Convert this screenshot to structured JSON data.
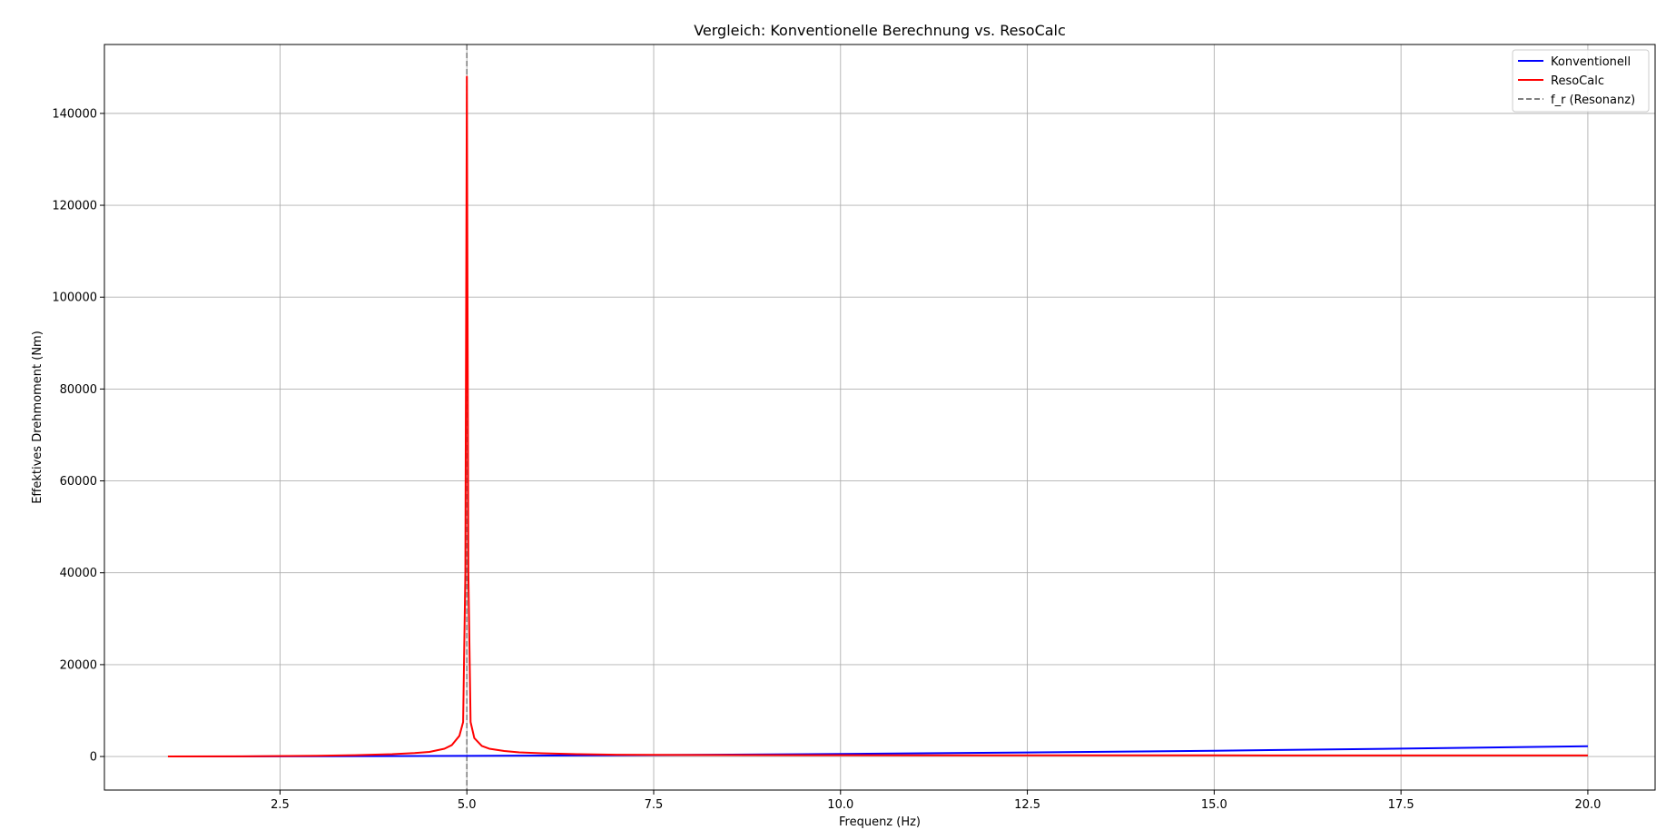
{
  "chart_data": {
    "type": "line",
    "title": "Vergleich: Konventionelle Berechnung vs. ResoCalc",
    "xlabel": "Frequenz (Hz)",
    "ylabel": "Effektives Drehmoment (Nm)",
    "xlim": [
      0.15,
      20.9
    ],
    "ylim": [
      -7300,
      155000
    ],
    "x_ticks": [
      2.5,
      5.0,
      7.5,
      10.0,
      12.5,
      15.0,
      17.5,
      20.0
    ],
    "x_tick_labels": [
      "2.5",
      "5.0",
      "7.5",
      "10.0",
      "12.5",
      "15.0",
      "17.5",
      "20.0"
    ],
    "y_ticks": [
      0,
      20000,
      40000,
      60000,
      80000,
      100000,
      120000,
      140000
    ],
    "y_tick_labels": [
      "0",
      "20000",
      "40000",
      "60000",
      "80000",
      "100000",
      "120000",
      "140000"
    ],
    "grid": true,
    "legend_position": "top-right",
    "series": [
      {
        "name": "Konventionell",
        "color": "#0000ff",
        "x": [
          1.0,
          2.5,
          5.0,
          7.5,
          10.0,
          12.5,
          15.0,
          17.5,
          20.0
        ],
        "y": [
          5,
          35,
          140,
          320,
          560,
          880,
          1260,
          1720,
          2240
        ]
      },
      {
        "name": "ResoCalc",
        "color": "#ff0000",
        "x": [
          1.0,
          2.0,
          3.0,
          3.5,
          4.0,
          4.3,
          4.5,
          4.7,
          4.8,
          4.9,
          4.95,
          4.98,
          5.0,
          5.02,
          5.05,
          5.1,
          5.2,
          5.3,
          5.5,
          5.7,
          6.0,
          6.5,
          7.0,
          8.0,
          10.0,
          12.5,
          15.0,
          17.5,
          20.0
        ],
        "y": [
          10,
          40,
          160,
          280,
          500,
          750,
          1000,
          1700,
          2500,
          4500,
          7500,
          40000,
          148000,
          40000,
          7500,
          4000,
          2300,
          1700,
          1200,
          900,
          700,
          500,
          380,
          330,
          280,
          260,
          250,
          240,
          230
        ]
      }
    ],
    "reference_lines": [
      {
        "name": "f_r (Resonanz)",
        "x": 5.0,
        "color": "#808080",
        "style": "dashed"
      }
    ]
  }
}
